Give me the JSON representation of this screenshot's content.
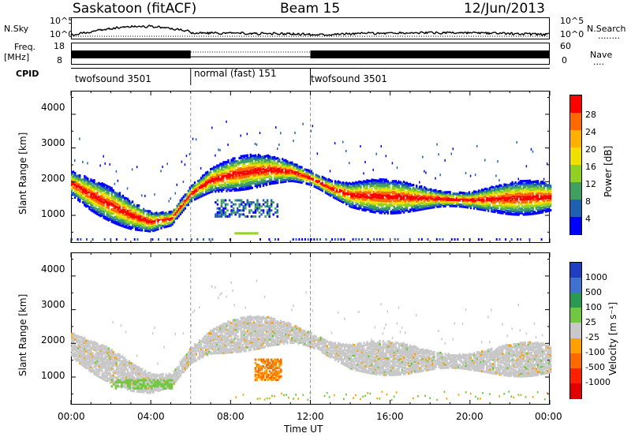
{
  "header": {
    "station": "Saskatoon (fitACF)",
    "beam": "Beam 15",
    "date": "12/Jun/2013"
  },
  "side_labels": {
    "nsky": "N.Sky",
    "nsearch": "N.Search",
    "freq": "Freq.",
    "freq_unit": "[MHz]",
    "nave": "Nave",
    "cpid": "CPID",
    "nsky_ticks": [
      "10^5",
      "10^0"
    ],
    "nsearch_ticks": [
      "10^5",
      "10^0"
    ],
    "freq_ticks": [
      "18",
      "8"
    ],
    "nave_ticks": [
      "60",
      "0"
    ],
    "nsearch_line": "........",
    "nave_line": "...."
  },
  "cpid_segments": [
    {
      "label": "twofsound 3501",
      "start_hour": 0,
      "end_hour": 6
    },
    {
      "label": "normal (fast) 151",
      "start_hour": 6,
      "end_hour": 12
    },
    {
      "label": "twofsound 3501",
      "start_hour": 12,
      "end_hour": 24
    }
  ],
  "colorbars": {
    "power": {
      "label": "Power [dB]",
      "ticks": [
        "28",
        "24",
        "20",
        "16",
        "12",
        "8",
        "4"
      ],
      "colors": [
        "#ff0000",
        "#ff6a00",
        "#ffb000",
        "#f0e000",
        "#90d020",
        "#40a060",
        "#2060b0",
        "#0000ff"
      ]
    },
    "velocity": {
      "label": "Velocity [m s⁻¹]",
      "ticks": [
        "1000",
        "500",
        "100",
        "25",
        "-25",
        "-100",
        "-500",
        "-1000"
      ],
      "colors": [
        "#1f3fc0",
        "#4070d0",
        "#2a9a50",
        "#70c840",
        "#c8c8c8",
        "#ffa000",
        "#ff6a00",
        "#ff2000",
        "#e00000"
      ]
    }
  },
  "chart_data": [
    {
      "type": "heatmap",
      "title": "Power",
      "xlabel": "",
      "ylabel": "Slant Range [km]",
      "x_ticks": [
        "00:00",
        "04:00",
        "08:00",
        "12:00",
        "16:00",
        "20:00",
        "00:00"
      ],
      "y_ticks": [
        "1000",
        "2000",
        "3000",
        "4000"
      ],
      "xlim_hours": [
        0,
        24
      ],
      "ylim_km": [
        180,
        4700
      ],
      "main_band_center_km": [
        {
          "hour": 0,
          "km": 1950
        },
        {
          "hour": 1,
          "km": 1600
        },
        {
          "hour": 2,
          "km": 1300
        },
        {
          "hour": 3,
          "km": 1000
        },
        {
          "hour": 4,
          "km": 800
        },
        {
          "hour": 5,
          "km": 900
        },
        {
          "hour": 6,
          "km": 1650
        },
        {
          "hour": 7,
          "km": 2050
        },
        {
          "hour": 8,
          "km": 2200
        },
        {
          "hour": 9,
          "km": 2300
        },
        {
          "hour": 10,
          "km": 2350
        },
        {
          "hour": 11,
          "km": 2300
        },
        {
          "hour": 12,
          "km": 2100
        },
        {
          "hour": 13,
          "km": 1800
        },
        {
          "hour": 14,
          "km": 1600
        },
        {
          "hour": 16,
          "km": 1550
        },
        {
          "hour": 18,
          "km": 1500
        },
        {
          "hour": 20,
          "km": 1450
        },
        {
          "hour": 22,
          "km": 1500
        },
        {
          "hour": 24,
          "km": 1550
        }
      ]
    },
    {
      "type": "heatmap",
      "title": "Velocity",
      "xlabel": "Time UT",
      "ylabel": "Slant Range [km]",
      "x_ticks": [
        "00:00",
        "04:00",
        "08:00",
        "12:00",
        "16:00",
        "20:00",
        "00:00"
      ],
      "y_ticks": [
        "1000",
        "2000",
        "3000",
        "4000"
      ],
      "xlim_hours": [
        0,
        24
      ],
      "ylim_km": [
        180,
        4700
      ]
    }
  ]
}
